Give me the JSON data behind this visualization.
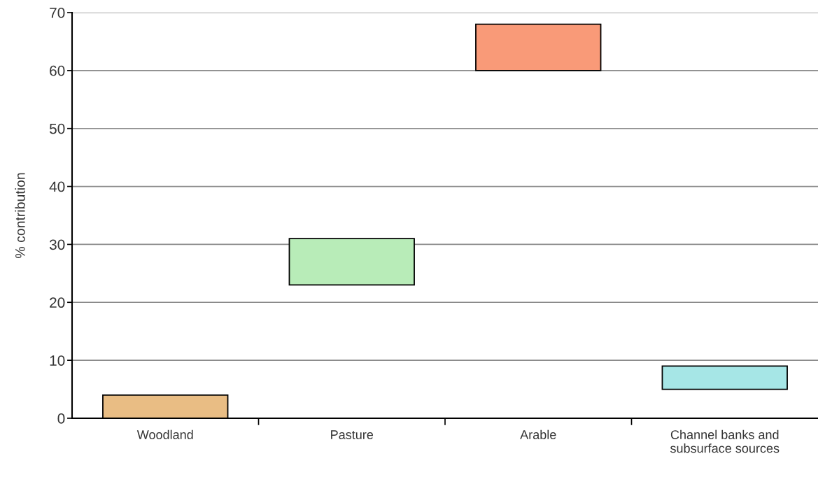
{
  "chart_data": {
    "type": "bar",
    "categories": [
      "Woodland",
      "Pasture",
      "Arable",
      "Channel banks and\nsubsurface sources"
    ],
    "values": [
      4,
      8,
      8,
      4
    ],
    "base": [
      0,
      23,
      60,
      5
    ],
    "colors": [
      "#e9bd84",
      "#b8ecb8",
      "#f99a78",
      "#a6e6e6"
    ],
    "ylabel": "% contribution",
    "ylim": [
      0,
      70
    ],
    "yticks": [
      0,
      10,
      20,
      30,
      40,
      50,
      60,
      70
    ],
    "grid": "y"
  }
}
